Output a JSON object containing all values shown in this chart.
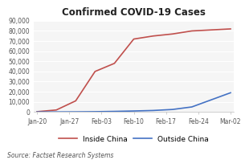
{
  "title": "Confirmed COVID-19 Cases",
  "source_text": "Source: Factset Research Systems",
  "x_labels": [
    "Jan-20",
    "Jan-27",
    "Feb-03",
    "Feb-10",
    "Feb-17",
    "Feb-24",
    "Mar-02"
  ],
  "inside_china": [
    300,
    2000,
    11000,
    40000,
    48000,
    72000,
    75000,
    77000,
    80000,
    81000,
    82000
  ],
  "outside_china": [
    50,
    80,
    150,
    300,
    600,
    1000,
    1500,
    2500,
    5000,
    12000,
    19000
  ],
  "china_color": "#c0504d",
  "outside_color": "#4472c4",
  "ylim": [
    0,
    90000
  ],
  "yticks": [
    0,
    10000,
    20000,
    30000,
    40000,
    50000,
    60000,
    70000,
    80000,
    90000
  ],
  "background_color": "#ffffff",
  "plot_bg_color": "#f5f5f5",
  "grid_color": "#ffffff",
  "title_fontsize": 8.5,
  "legend_fontsize": 6.5,
  "tick_fontsize": 5.5,
  "source_fontsize": 5.5
}
